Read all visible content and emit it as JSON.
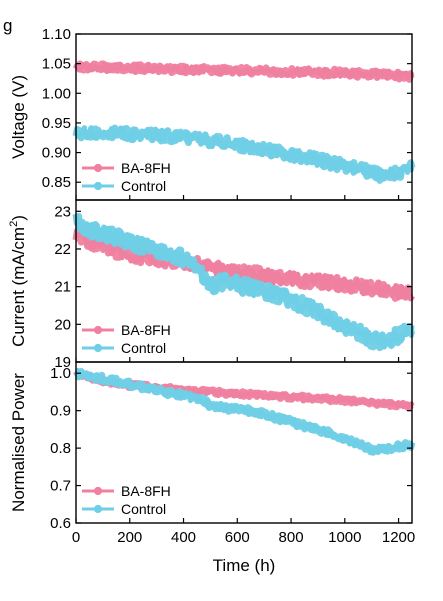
{
  "panel_letter": "g",
  "colors": {
    "ba8fh": "#f080a0",
    "control": "#6fcfe6"
  },
  "chart_data": [
    {
      "type": "line",
      "ylabel": "Voltage (V)",
      "ylim": [
        0.82,
        1.1
      ],
      "yticks": [
        0.85,
        0.9,
        0.95,
        1.0,
        1.05,
        1.1
      ],
      "ytick_labels": [
        "0.85",
        "0.90",
        "0.95",
        "1.00",
        "1.05",
        "1.10"
      ],
      "xlim": [
        0,
        1250
      ],
      "legend": "bottom-left",
      "series": [
        {
          "name": "BA-8FH",
          "color": "#f080a0",
          "spread": 0.012,
          "x": [
            0,
            200,
            400,
            600,
            800,
            1000,
            1100,
            1250
          ],
          "y": [
            1.045,
            1.043,
            1.04,
            1.038,
            1.036,
            1.034,
            1.032,
            1.029
          ]
        },
        {
          "name": "Control",
          "color": "#6fcfe6",
          "spread": 0.02,
          "x": [
            0,
            100,
            200,
            300,
            400,
            500,
            600,
            700,
            800,
            900,
            1000,
            1050,
            1100,
            1150,
            1200,
            1250
          ],
          "y": [
            0.933,
            0.933,
            0.932,
            0.93,
            0.926,
            0.92,
            0.913,
            0.905,
            0.897,
            0.888,
            0.878,
            0.873,
            0.866,
            0.861,
            0.866,
            0.874
          ]
        }
      ]
    },
    {
      "type": "line",
      "ylabel": "Current (mA/cm²)",
      "ylim": [
        19,
        23.3
      ],
      "yticks": [
        19,
        20,
        21,
        22,
        23
      ],
      "ytick_labels": [
        "19",
        "20",
        "21",
        "22",
        "23"
      ],
      "xlim": [
        0,
        1250
      ],
      "legend": "bottom-left",
      "series": [
        {
          "name": "BA-8FH",
          "color": "#f080a0",
          "spread": 0.35,
          "x": [
            0,
            50,
            100,
            200,
            300,
            400,
            450,
            500,
            600,
            700,
            800,
            900,
            1000,
            1100,
            1200,
            1250
          ],
          "y": [
            22.4,
            22.2,
            22.05,
            21.85,
            21.75,
            21.65,
            21.6,
            21.5,
            21.4,
            21.3,
            21.2,
            21.15,
            21.05,
            20.95,
            20.85,
            20.8
          ]
        },
        {
          "name": "Control",
          "color": "#6fcfe6",
          "spread": 0.4,
          "x": [
            0,
            20,
            100,
            200,
            300,
            400,
            460,
            500,
            550,
            600,
            700,
            800,
            900,
            950,
            1000,
            1050,
            1100,
            1150,
            1200,
            1250
          ],
          "y": [
            22.8,
            22.6,
            22.4,
            22.2,
            21.95,
            21.75,
            21.4,
            21.0,
            21.15,
            21.05,
            20.9,
            20.65,
            20.35,
            20.1,
            19.95,
            19.8,
            19.6,
            19.55,
            19.7,
            19.9
          ]
        }
      ]
    },
    {
      "type": "line",
      "ylabel": "Normalised Power",
      "ylim": [
        0.6,
        1.03
      ],
      "yticks": [
        0.6,
        0.7,
        0.8,
        0.9,
        1.0
      ],
      "ytick_labels": [
        "0.6",
        "0.7",
        "0.8",
        "0.9",
        "1.0"
      ],
      "xlim": [
        0,
        1250
      ],
      "xticks": [
        0,
        200,
        400,
        600,
        800,
        1000,
        1200
      ],
      "xtick_labels": [
        "0",
        "200",
        "400",
        "600",
        "800",
        "1000",
        "1200"
      ],
      "xlabel": "Time (h)",
      "legend": "bottom-left",
      "series": [
        {
          "name": "BA-8FH",
          "color": "#f080a0",
          "spread": 0.013,
          "x": [
            0,
            100,
            200,
            400,
            600,
            800,
            1000,
            1100,
            1250
          ],
          "y": [
            1.0,
            0.98,
            0.968,
            0.955,
            0.945,
            0.937,
            0.928,
            0.922,
            0.912
          ]
        },
        {
          "name": "Control",
          "color": "#6fcfe6",
          "spread": 0.018,
          "x": [
            0,
            100,
            200,
            300,
            400,
            480,
            500,
            600,
            700,
            800,
            900,
            1000,
            1050,
            1100,
            1150,
            1200,
            1250
          ],
          "y": [
            1.0,
            0.985,
            0.97,
            0.955,
            0.94,
            0.925,
            0.91,
            0.905,
            0.89,
            0.87,
            0.85,
            0.825,
            0.81,
            0.795,
            0.8,
            0.805,
            0.81
          ]
        }
      ]
    }
  ]
}
